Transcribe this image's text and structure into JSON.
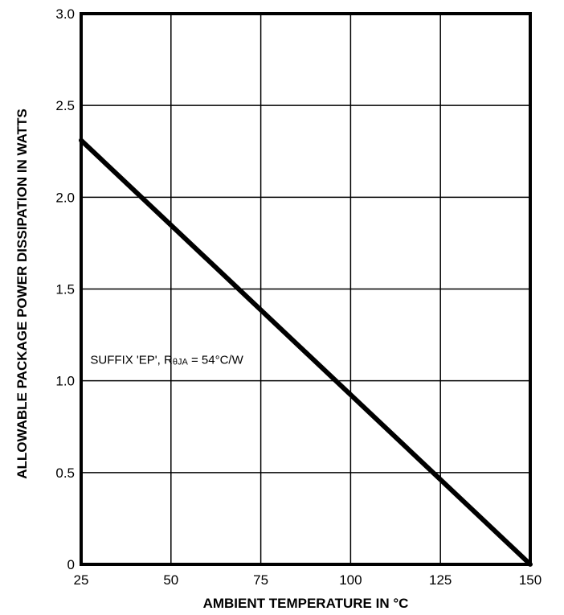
{
  "chart_data": {
    "type": "line",
    "title": "",
    "xlabel": "AMBIENT TEMPERATURE IN °C",
    "ylabel": "ALLOWABLE PACKAGE POWER DISSIPATION IN WATTS",
    "xlim": [
      25,
      150
    ],
    "ylim": [
      0,
      3.0
    ],
    "x_ticks": [
      25,
      50,
      75,
      100,
      125,
      150
    ],
    "x_tick_labels": [
      "25",
      "50",
      "75",
      "100",
      "125",
      "150"
    ],
    "y_ticks": [
      0,
      0.5,
      1.0,
      1.5,
      2.0,
      2.5,
      3.0
    ],
    "y_tick_labels": [
      "0",
      "0.5",
      "1.0",
      "1.5",
      "2.0",
      "2.5",
      "3.0"
    ],
    "grid": true,
    "series": [
      {
        "x": [
          25,
          150
        ],
        "y": [
          2.31,
          0
        ]
      }
    ],
    "annotation": {
      "prefix": "SUFFIX 'EP', R",
      "subscript": "θJA",
      "suffix": " = 54°C/W",
      "x": 28,
      "y": 1.0
    }
  }
}
